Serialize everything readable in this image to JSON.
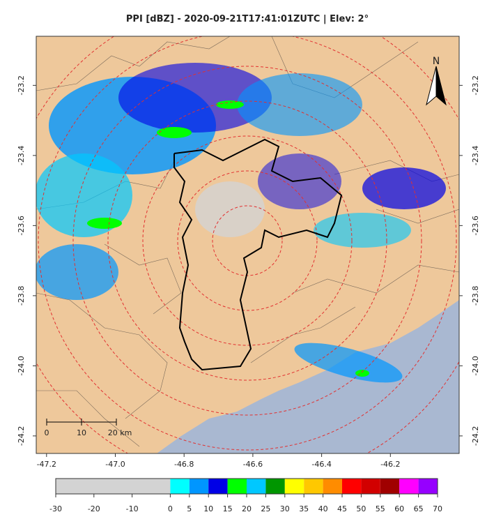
{
  "title": "PPI [dBZ] - 2020-09-21T17:41:01ZUTC | Elev: 2°",
  "map": {
    "xlim": [
      -47.23,
      -46.0
    ],
    "ylim": [
      -24.25,
      -23.06
    ],
    "xticks": [
      -47.2,
      {
        "value": -47.0,
        "label": "-47.0"
      },
      -46.8,
      -46.6,
      -46.4,
      -46.2
    ],
    "yticks": [
      -23.2,
      -23.4,
      -23.6,
      -23.8,
      {
        "value": -24.0,
        "label": "-24.0"
      },
      -24.2
    ],
    "north_label": "N",
    "scale_bar": [
      "0",
      "10",
      "20 km"
    ]
  },
  "colorbar": {
    "lim": [
      -30,
      70
    ],
    "ticks": [
      -30,
      -20,
      -10,
      0,
      5,
      10,
      15,
      20,
      25,
      30,
      35,
      40,
      45,
      50,
      55,
      60,
      65,
      70
    ],
    "below_color": "#d3d3d3",
    "bins": [
      0,
      5,
      10,
      15,
      20,
      25,
      30,
      35,
      40,
      45,
      50,
      55,
      60,
      65,
      70
    ],
    "colors": [
      "#00ffff",
      "#0096ff",
      "#0000e6",
      "#00ff00",
      "#00c8ff",
      "#009600",
      "#ffff00",
      "#ffc800",
      "#ff8c00",
      "#ff0000",
      "#d20000",
      "#a00000",
      "#ff00ff",
      "#9600ff"
    ]
  }
}
